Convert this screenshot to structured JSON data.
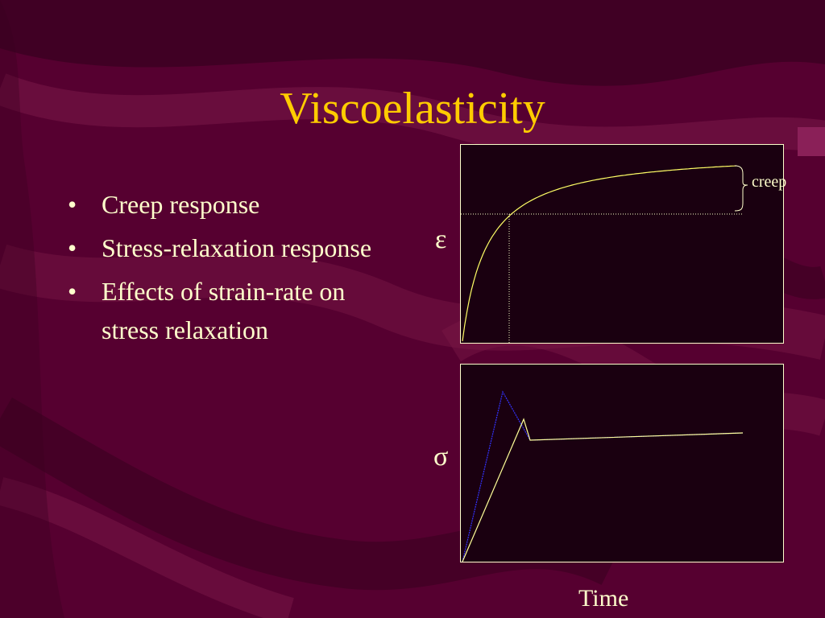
{
  "colors": {
    "background": "#5a0030",
    "title": "#ffcc00",
    "text": "#ffffcc",
    "plot_bg": "#1a0010",
    "curve_yellow": "#ffff66",
    "curve_blue": "#3333ff",
    "plot_border": "#ffffcc"
  },
  "slide": {
    "title": "Viscoelasticity",
    "bullets": [
      "Creep response",
      "Stress-relaxation response",
      "Effects of strain-rate on stress relaxation"
    ],
    "bullet_glyph": "•"
  },
  "diagram": {
    "top_plot": {
      "y_symbol": "ε",
      "annotation": "creep"
    },
    "bottom_plot": {
      "y_symbol": "σ"
    },
    "x_label": "Time"
  }
}
